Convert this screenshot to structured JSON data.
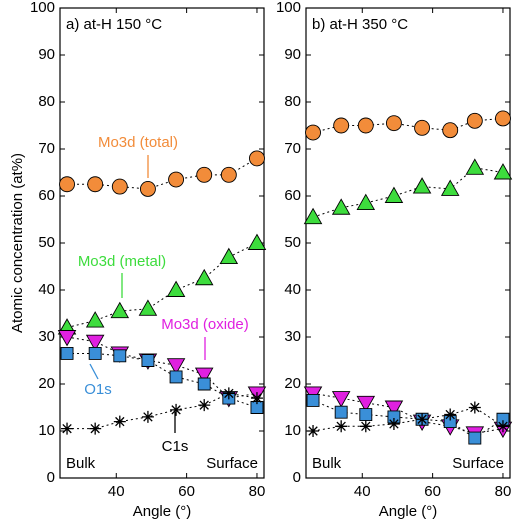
{
  "chart_data": [
    {
      "type": "scatter",
      "title": "a) at-H 150 °C",
      "xlabel": "Angle (°)",
      "ylabel": "Atomic concentration (at%)",
      "x": [
        26,
        34,
        41,
        49,
        57,
        65,
        72,
        80
      ],
      "xlim": [
        24,
        82
      ],
      "xticks": [
        40,
        60,
        80
      ],
      "ylim": [
        0,
        100
      ],
      "yticks": [
        0,
        10,
        20,
        30,
        40,
        50,
        60,
        70,
        80,
        90,
        100
      ],
      "annotations": [
        "Bulk",
        "Surface"
      ],
      "series": [
        {
          "name": "Mo3d (total)",
          "color": "#f28c3a",
          "marker": "circle",
          "values": [
            62.5,
            62.5,
            62,
            61.5,
            63.5,
            64.5,
            64.5,
            68
          ]
        },
        {
          "name": "Mo3d (metal)",
          "color": "#3ddc3d",
          "marker": "triangle-up",
          "values": [
            32,
            33.5,
            35.5,
            36,
            40,
            42.5,
            47,
            50
          ]
        },
        {
          "name": "Mo3d (oxide)",
          "color": "#e020e0",
          "marker": "triangle-down",
          "values": [
            30,
            29,
            26.5,
            25,
            24,
            22,
            17,
            18
          ]
        },
        {
          "name": "O1s",
          "color": "#3a8fd8",
          "marker": "square",
          "values": [
            26.5,
            26.5,
            26,
            25,
            21.5,
            20,
            17,
            15
          ]
        },
        {
          "name": "C1s",
          "color": "#000000",
          "marker": "star",
          "values": [
            10.5,
            10.5,
            12,
            13,
            14.5,
            15.5,
            18,
            17
          ]
        }
      ]
    },
    {
      "type": "scatter",
      "title": "b) at-H 350 °C",
      "xlabel": "Angle (°)",
      "x": [
        26,
        34,
        41,
        49,
        57,
        65,
        72,
        80
      ],
      "xlim": [
        24,
        82
      ],
      "xticks": [
        40,
        60,
        80
      ],
      "ylim": [
        0,
        100
      ],
      "yticks": [
        0,
        10,
        20,
        30,
        40,
        50,
        60,
        70,
        80,
        90,
        100
      ],
      "annotations": [
        "Bulk",
        "Surface"
      ],
      "series": [
        {
          "color": "#f28c3a",
          "marker": "circle",
          "values": [
            73.5,
            75,
            75,
            75.5,
            74.5,
            74,
            76,
            76.5
          ]
        },
        {
          "color": "#3ddc3d",
          "marker": "triangle-up",
          "values": [
            55.5,
            57.5,
            58.5,
            60,
            62,
            61.5,
            66,
            65
          ]
        },
        {
          "color": "#e020e0",
          "marker": "triangle-down",
          "values": [
            18,
            17,
            16,
            15,
            12,
            11,
            9.5,
            10.5
          ]
        },
        {
          "color": "#3a8fd8",
          "marker": "square",
          "values": [
            16.5,
            14,
            13.5,
            13,
            12.5,
            12,
            8.5,
            12.5
          ]
        },
        {
          "color": "#000000",
          "marker": "star",
          "values": [
            10,
            11,
            11,
            11.5,
            12.5,
            13.5,
            15,
            11
          ]
        }
      ]
    }
  ]
}
